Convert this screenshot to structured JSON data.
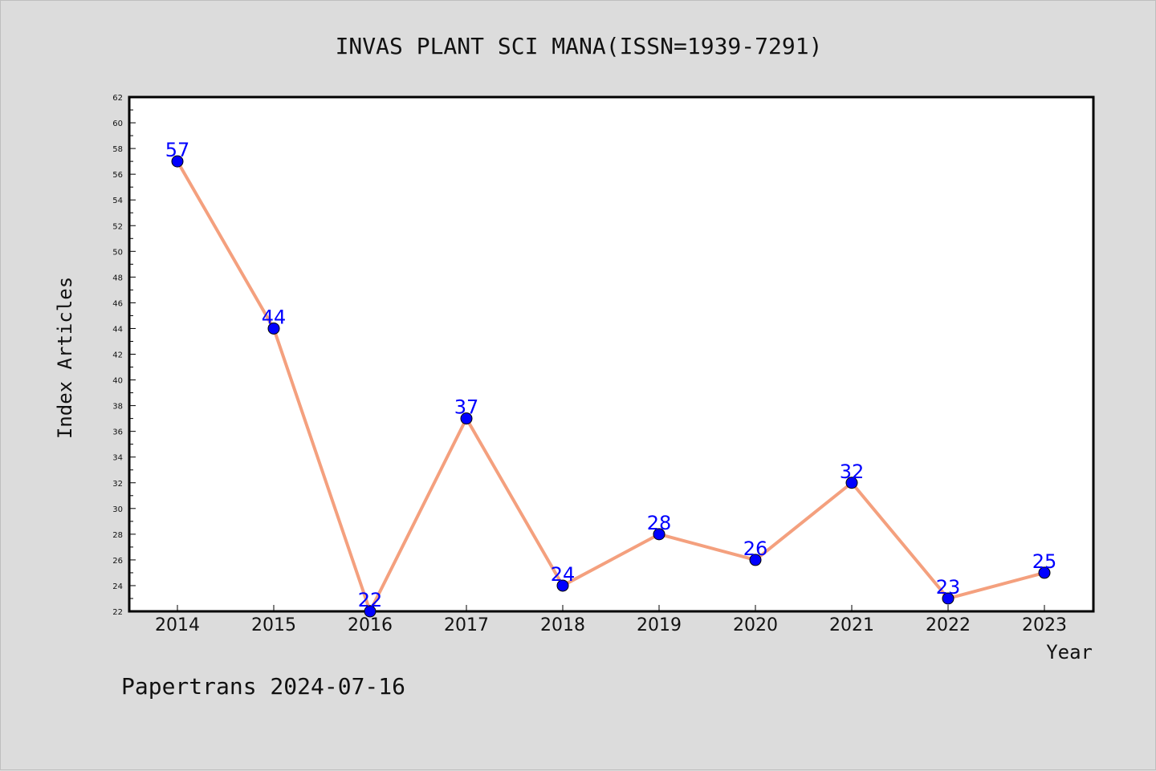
{
  "chart_data": {
    "type": "line",
    "title": "INVAS PLANT SCI MANA(ISSN=1939-7291)",
    "xlabel": "Year",
    "ylabel": "Index Articles",
    "categories": [
      "2014",
      "2015",
      "2016",
      "2017",
      "2018",
      "2019",
      "2020",
      "2021",
      "2022",
      "2023"
    ],
    "series": [
      {
        "values": [
          57,
          44,
          22,
          37,
          24,
          28,
          26,
          32,
          23,
          25
        ]
      }
    ],
    "ylim": [
      22,
      62
    ],
    "yticks": [
      22,
      24,
      26,
      28,
      30,
      32,
      34,
      36,
      38,
      40,
      42,
      44,
      46,
      48,
      50,
      52,
      54,
      56,
      58,
      60,
      62
    ],
    "grid": false,
    "data_labels": true,
    "colors": {
      "line": "#f4a07e",
      "marker": "#0000ff",
      "label": "#0000ff",
      "background": "#dcdcdc",
      "plot_bg": "#ffffff"
    }
  },
  "footer": "Papertrans 2024-07-16"
}
